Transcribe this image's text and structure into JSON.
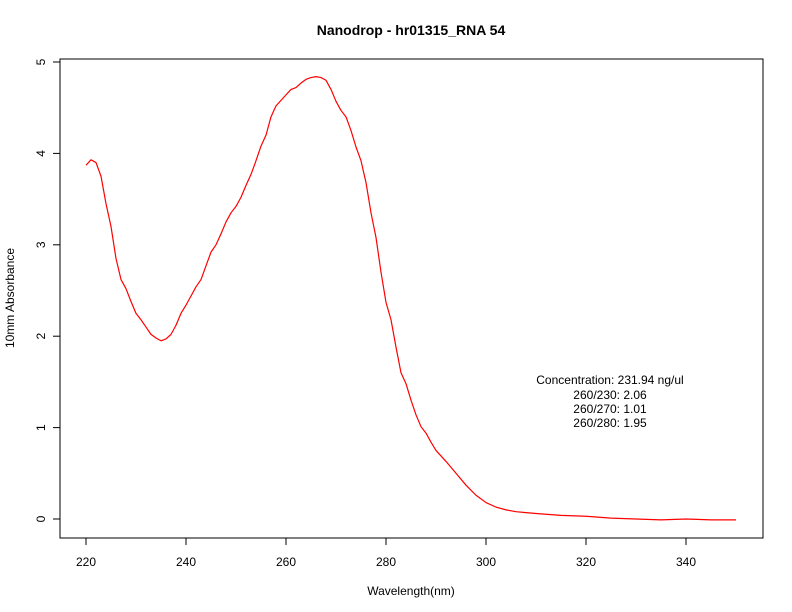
{
  "chart_data": {
    "type": "line",
    "title": "Nanodrop - hr01315_RNA 54",
    "xlabel": "Wavelength(nm)",
    "ylabel": "10mm Absorbance",
    "xlim": [
      215,
      350
    ],
    "ylim": [
      0,
      5
    ],
    "x_ticks": [
      "220",
      "240",
      "260",
      "280",
      "300",
      "320",
      "340"
    ],
    "y_ticks": [
      "0",
      "1",
      "2",
      "3",
      "4",
      "5"
    ],
    "grid": false,
    "series": [
      {
        "color": "#ff0000",
        "x": [
          220,
          221,
          222,
          223,
          224,
          225,
          226,
          227,
          228,
          229,
          230,
          231,
          232,
          233,
          234,
          235,
          236,
          237,
          238,
          239,
          240,
          241,
          242,
          243,
          244,
          245,
          246,
          247,
          248,
          249,
          250,
          251,
          252,
          253,
          254,
          255,
          256,
          257,
          258,
          259,
          260,
          261,
          262,
          263,
          264,
          265,
          266,
          267,
          268,
          269,
          270,
          271,
          272,
          273,
          274,
          275,
          276,
          277,
          278,
          279,
          280,
          281,
          282,
          283,
          284,
          285,
          286,
          287,
          288,
          289,
          290,
          292,
          294,
          296,
          298,
          300,
          302,
          304,
          306,
          308,
          310,
          315,
          320,
          325,
          330,
          335,
          340,
          345,
          350
        ],
        "y": [
          3.87,
          3.93,
          3.9,
          3.75,
          3.45,
          3.2,
          2.85,
          2.62,
          2.52,
          2.38,
          2.25,
          2.18,
          2.1,
          2.02,
          1.98,
          1.95,
          1.97,
          2.02,
          2.12,
          2.25,
          2.34,
          2.44,
          2.54,
          2.62,
          2.77,
          2.92,
          3.0,
          3.12,
          3.25,
          3.35,
          3.42,
          3.52,
          3.65,
          3.77,
          3.92,
          4.08,
          4.2,
          4.4,
          4.52,
          4.58,
          4.64,
          4.7,
          4.72,
          4.77,
          4.81,
          4.83,
          4.84,
          4.83,
          4.8,
          4.7,
          4.57,
          4.47,
          4.4,
          4.25,
          4.07,
          3.92,
          3.68,
          3.35,
          3.08,
          2.7,
          2.37,
          2.18,
          1.88,
          1.6,
          1.48,
          1.3,
          1.14,
          1.01,
          0.94,
          0.84,
          0.75,
          0.63,
          0.5,
          0.37,
          0.26,
          0.18,
          0.13,
          0.1,
          0.08,
          0.07,
          0.06,
          0.04,
          0.03,
          0.01,
          0.0,
          -0.01,
          0.0,
          -0.01,
          -0.01
        ]
      }
    ],
    "annotations": [
      "Concentration: 231.94 ng/ul",
      "260/230: 2.06",
      "260/270: 1.01",
      "260/280: 1.95"
    ]
  }
}
